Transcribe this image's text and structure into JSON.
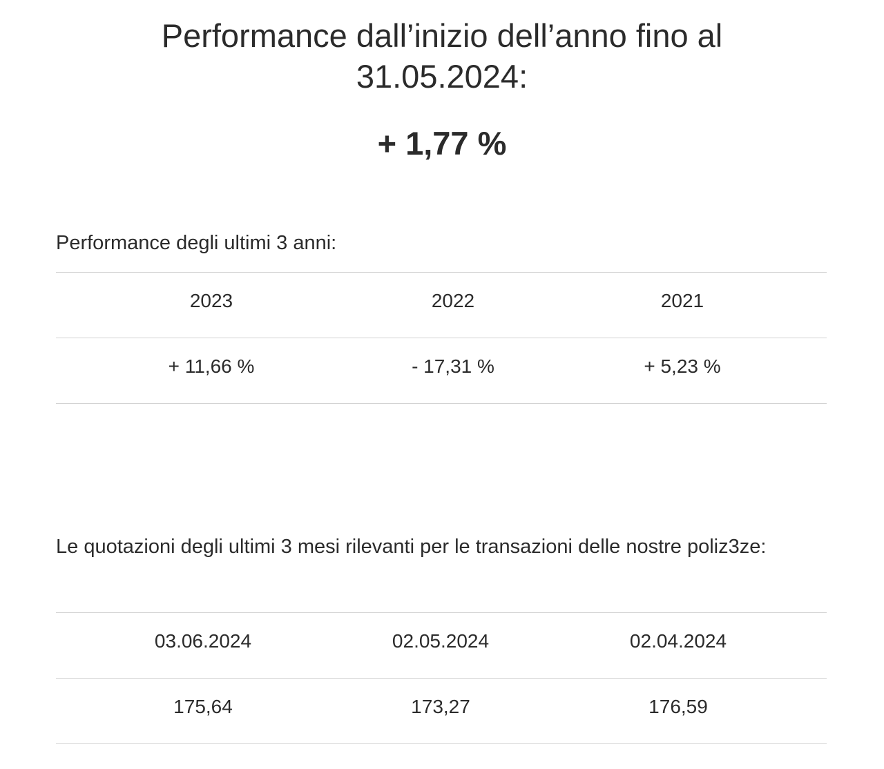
{
  "ytd": {
    "title": "Performance dall’inizio dell’anno fino al 31.05.2024:",
    "value": "+ 1,77 %"
  },
  "annual": {
    "label": "Performance degli ultimi 3 anni:",
    "headers": [
      "2023",
      "2022",
      "2021"
    ],
    "values": [
      "+ 11,66 %",
      "- 17,31 %",
      "+ 5,23 %"
    ]
  },
  "quotes": {
    "label": "Le quotazioni degli ultimi 3 mesi rilevanti per le transazioni delle nostre poliz3ze:",
    "headers": [
      "03.06.2024",
      "02.05.2024",
      "02.04.2024"
    ],
    "values": [
      "175,64",
      "173,27",
      "176,59"
    ]
  }
}
